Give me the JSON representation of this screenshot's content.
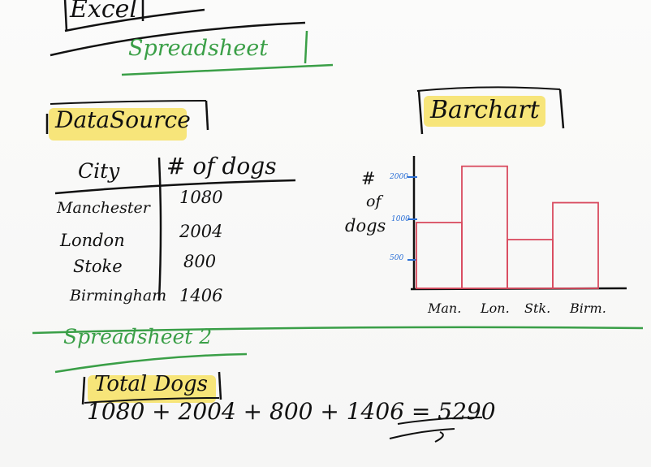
{
  "title": "Excel",
  "spreadsheet1": {
    "label": "Spreadsheet",
    "data_source_label": "DataSource",
    "table": {
      "headers": [
        "City",
        "# of dogs"
      ],
      "rows": [
        {
          "city": "Manchester",
          "dogs": "1080"
        },
        {
          "city": "London",
          "dogs": "2004"
        },
        {
          "city": "Stoke",
          "dogs": "800"
        },
        {
          "city": "Birmingham",
          "dogs": "1406"
        }
      ]
    }
  },
  "barchart": {
    "label": "Barchart",
    "ylabel_lines": [
      "#",
      "of",
      "dogs"
    ],
    "yticks": [
      "2000",
      "1000",
      "500"
    ],
    "xticks": [
      "Man.",
      "Lon.",
      "Stk.",
      "Birm."
    ]
  },
  "chart_data": {
    "type": "bar",
    "title": "",
    "categories": [
      "Man.",
      "Lon.",
      "Stk.",
      "Birm."
    ],
    "values": [
      1080,
      2004,
      800,
      1406
    ],
    "ylabel": "# of dogs",
    "xlabel": "",
    "ylim": [
      0,
      2200
    ],
    "bar_color": "#d94b5f"
  },
  "spreadsheet2": {
    "label": "Spreadsheet 2",
    "total_label": "Total Dogs",
    "formula": "1080 + 2004 + 800 + 1406 = 5290"
  },
  "colors": {
    "green_ink": "#3a9f47",
    "highlight": "#f6e26b",
    "bar_stroke": "#d94b5f",
    "tick_blue": "#2b6fd6"
  }
}
